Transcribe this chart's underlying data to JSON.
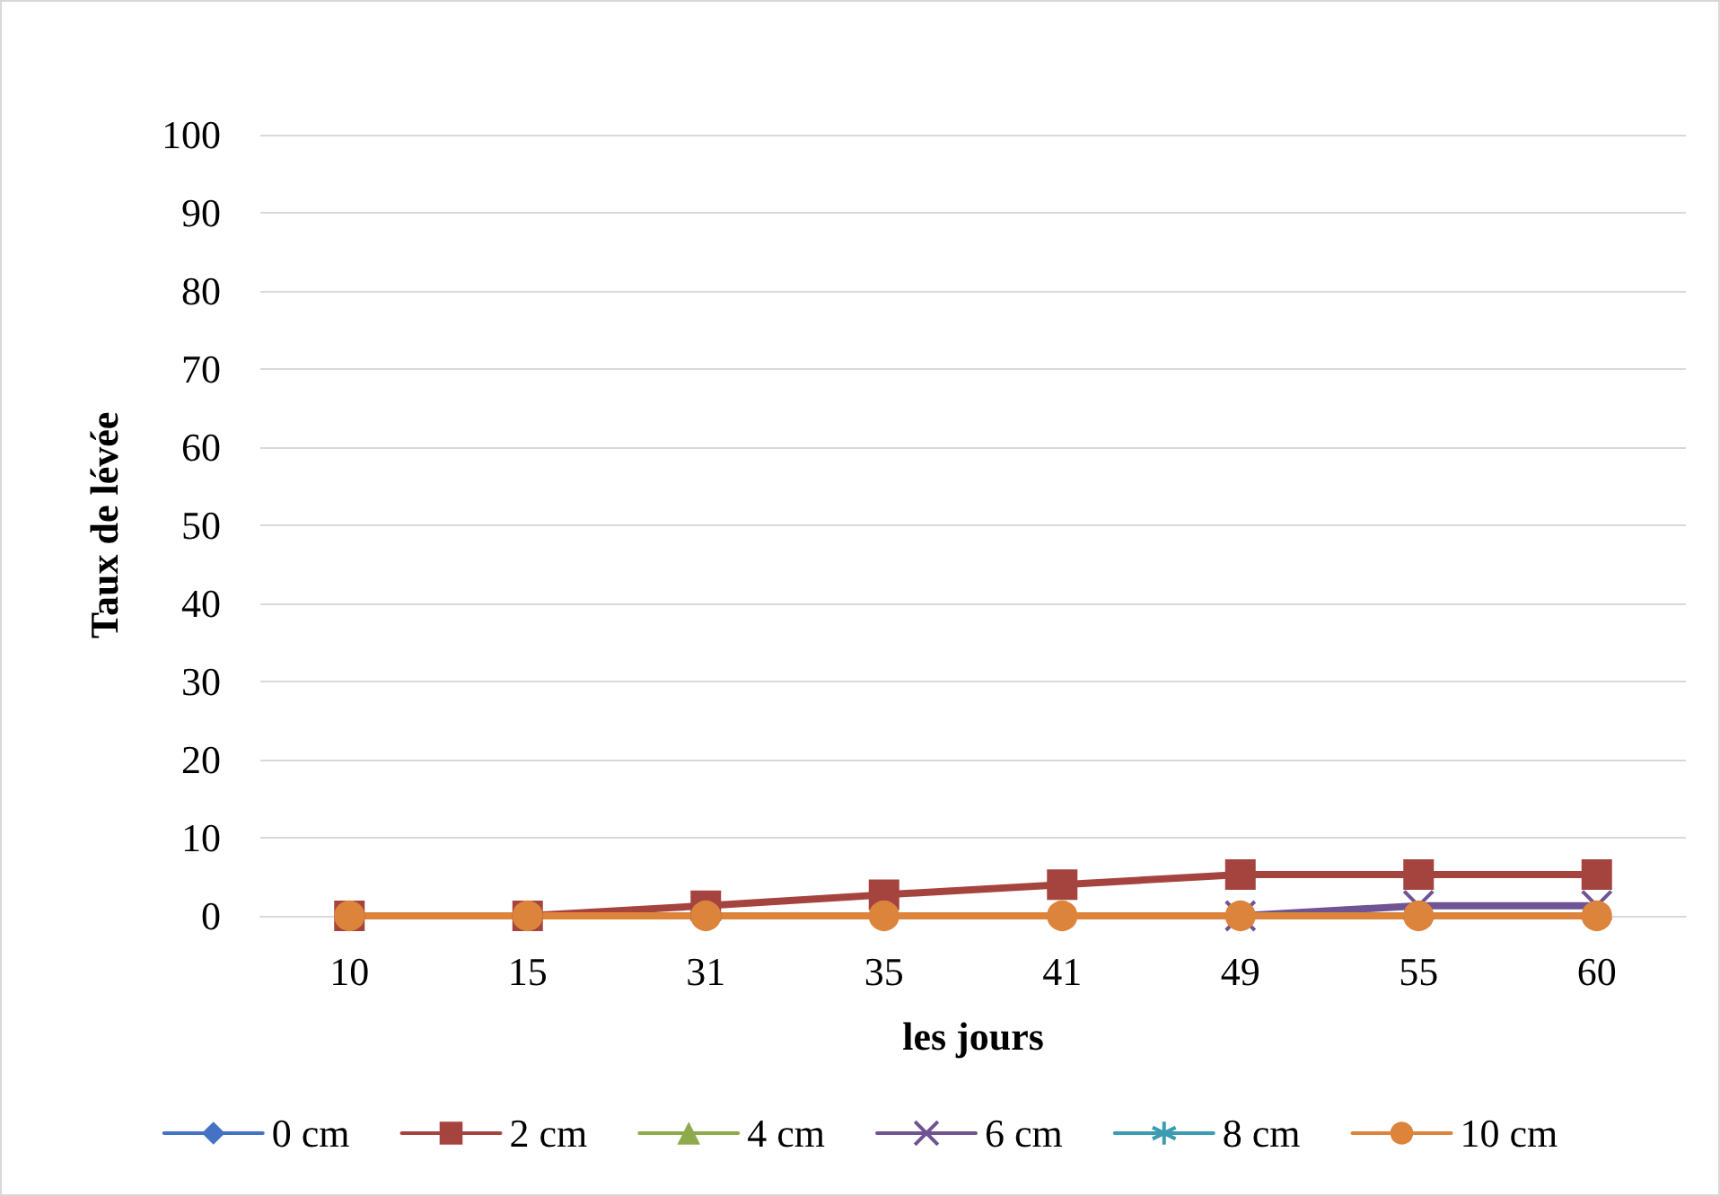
{
  "chart_data": {
    "type": "line",
    "xlabel": "les jours",
    "ylabel": "Taux de lévée",
    "categories": [
      "10",
      "15",
      "31",
      "35",
      "41",
      "49",
      "55",
      "60"
    ],
    "series": [
      {
        "name": "0 cm",
        "color": "#4472c4",
        "marker": "diamond",
        "values": [
          null,
          null,
          null,
          null,
          null,
          null,
          null,
          null
        ]
      },
      {
        "name": "2 cm",
        "color": "#a5443f",
        "marker": "square",
        "values": [
          0,
          0,
          1.3,
          2.7,
          4,
          5.3,
          5.3,
          5.3
        ]
      },
      {
        "name": "4 cm",
        "color": "#8faa4a",
        "marker": "triangle",
        "values": [
          null,
          null,
          null,
          null,
          null,
          null,
          null,
          null
        ]
      },
      {
        "name": "6 cm",
        "color": "#6f5393",
        "marker": "cross",
        "values": [
          null,
          null,
          null,
          null,
          null,
          0,
          1.3,
          1.3
        ]
      },
      {
        "name": "8 cm",
        "color": "#3b9bb3",
        "marker": "star",
        "values": [
          null,
          null,
          null,
          null,
          null,
          null,
          null,
          null
        ]
      },
      {
        "name": "10 cm",
        "color": "#dc843c",
        "marker": "circle",
        "values": [
          0,
          0,
          0,
          0,
          0,
          0,
          0,
          0
        ]
      }
    ],
    "ylim": [
      0,
      100
    ],
    "yticks": [
      0,
      10,
      20,
      30,
      40,
      50,
      60,
      70,
      80,
      90,
      100
    ],
    "grid": "y",
    "legend": "bottom"
  }
}
